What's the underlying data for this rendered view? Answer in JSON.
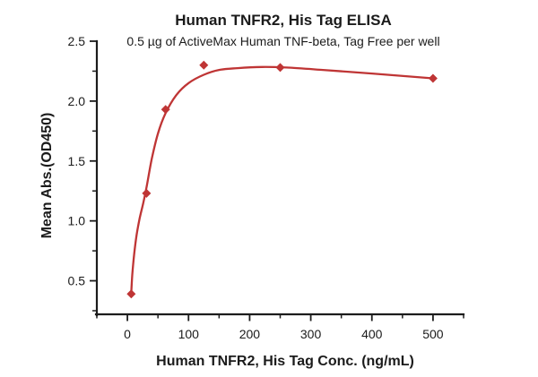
{
  "figure": {
    "background": "#ffffff",
    "text_color": "#1b1b1b"
  },
  "chart_data": {
    "type": "scatter",
    "title": "Human TNFR2, His Tag ELISA",
    "subtitle": "0.5 µg of ActiveMax Human TNF-beta, Tag Free per well",
    "xlabel": "Human TNFR2, His Tag Conc. (ng/mL)",
    "ylabel": "Mean Abs.(OD450)",
    "xlim": [
      -50,
      550
    ],
    "ylim": [
      0.22,
      2.5
    ],
    "x_ticks": [
      0,
      100,
      200,
      300,
      400,
      500
    ],
    "x_minor_step": 50,
    "y_ticks": [
      0.5,
      1.0,
      1.5,
      2.0,
      2.5
    ],
    "y_minor_step": 0.25,
    "grid": false,
    "legend": "none",
    "series": [
      {
        "color": "#bf3535",
        "marker": "diamond",
        "points": [
          [
            6.25,
            0.39
          ],
          [
            31.25,
            1.23
          ],
          [
            62.5,
            1.93
          ],
          [
            125,
            2.3
          ],
          [
            250,
            2.28
          ],
          [
            500,
            2.19
          ]
        ],
        "fit_curve": [
          [
            6.25,
            0.39
          ],
          [
            8,
            0.55
          ],
          [
            11,
            0.72
          ],
          [
            15,
            0.88
          ],
          [
            20,
            1.02
          ],
          [
            26,
            1.15
          ],
          [
            31.25,
            1.28
          ],
          [
            40,
            1.52
          ],
          [
            50,
            1.73
          ],
          [
            62.5,
            1.9
          ],
          [
            80,
            2.05
          ],
          [
            100,
            2.15
          ],
          [
            125,
            2.22
          ],
          [
            150,
            2.26
          ],
          [
            180,
            2.275
          ],
          [
            220,
            2.285
          ],
          [
            260,
            2.28
          ],
          [
            320,
            2.26
          ],
          [
            400,
            2.23
          ],
          [
            500,
            2.19
          ]
        ]
      }
    ]
  }
}
